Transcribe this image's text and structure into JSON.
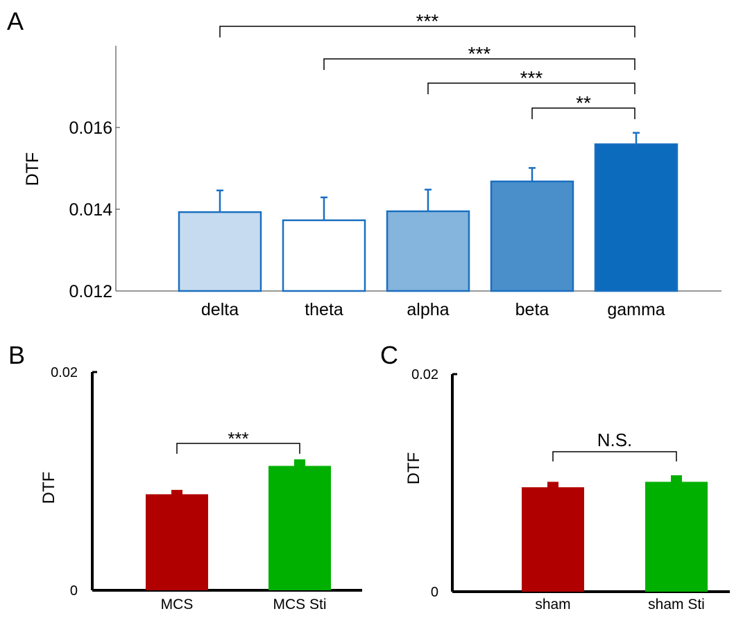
{
  "chart_data": [
    {
      "panel": "A",
      "type": "bar",
      "ylabel": "DTF",
      "xlabel": "",
      "ylim": [
        0.012,
        0.018
      ],
      "yticks": [
        "0.012",
        "0.014",
        "0.016"
      ],
      "categories": [
        "delta",
        "theta",
        "alpha",
        "beta",
        "gamma"
      ],
      "values": [
        0.01393,
        0.01373,
        0.01395,
        0.01468,
        0.01559
      ],
      "errors": [
        0.00053,
        0.00056,
        0.00053,
        0.00033,
        0.00028
      ],
      "colors": [
        "#c6dbef",
        "#ffffff",
        "#85b4dc",
        "#4a8fca",
        "#0c6bbd"
      ],
      "edge_color": "#1a6fc0",
      "significance": [
        {
          "from": "delta",
          "to": "gamma",
          "label": "***"
        },
        {
          "from": "theta",
          "to": "gamma",
          "label": "***"
        },
        {
          "from": "alpha",
          "to": "gamma",
          "label": "***"
        },
        {
          "from": "beta",
          "to": "gamma",
          "label": "**"
        }
      ]
    },
    {
      "panel": "B",
      "type": "bar",
      "ylabel": "DTF",
      "xlabel": "",
      "ylim": [
        0,
        0.02
      ],
      "yticks": [
        "0",
        "0.02"
      ],
      "categories": [
        "MCS",
        "MCS Sti"
      ],
      "values": [
        0.0088,
        0.0114
      ],
      "errors": [
        0.0004,
        0.0006
      ],
      "colors": [
        "#b00000",
        "#00b000"
      ],
      "significance": [
        {
          "from": "MCS",
          "to": "MCS Sti",
          "label": "***"
        }
      ]
    },
    {
      "panel": "C",
      "type": "bar",
      "ylabel": "DTF",
      "xlabel": "",
      "ylim": [
        0,
        0.02
      ],
      "yticks": [
        "0",
        "0.02"
      ],
      "categories": [
        "sham",
        "sham Sti"
      ],
      "values": [
        0.0096,
        0.0101
      ],
      "errors": [
        0.0005,
        0.0006
      ],
      "colors": [
        "#b00000",
        "#00b000"
      ],
      "significance": [
        {
          "from": "sham",
          "to": "sham Sti",
          "label": "N.S."
        }
      ]
    }
  ]
}
